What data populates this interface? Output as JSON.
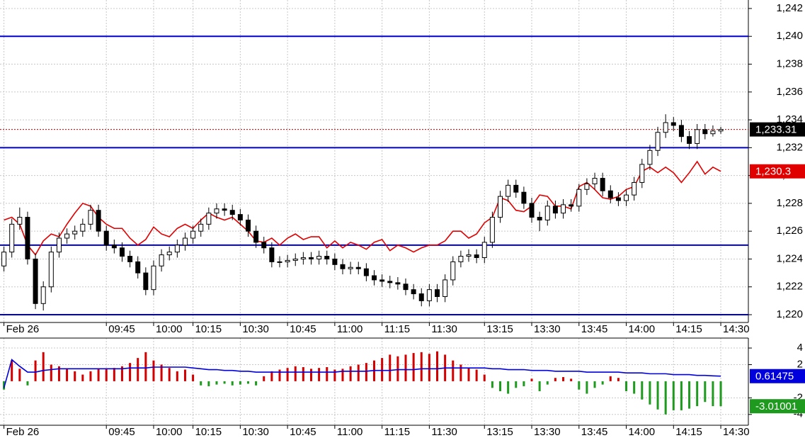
{
  "chart_data": [
    {
      "type": "candlestick",
      "xlim": [
        -0.5,
        94.5
      ],
      "xticks": [
        {
          "value": 0,
          "label": "Feb 26"
        },
        {
          "value": 13,
          "label": "09:45"
        },
        {
          "value": 19,
          "label": "10:00"
        },
        {
          "value": 24,
          "label": "10:15"
        },
        {
          "value": 30,
          "label": "10:30"
        },
        {
          "value": 36,
          "label": "10:45"
        },
        {
          "value": 42,
          "label": "11:00"
        },
        {
          "value": 48,
          "label": "11:15"
        },
        {
          "value": 54,
          "label": "11:30"
        },
        {
          "value": 61,
          "label": "13:15"
        },
        {
          "value": 67,
          "label": "13:30"
        },
        {
          "value": 73,
          "label": "13:45"
        },
        {
          "value": 79,
          "label": "14:00"
        },
        {
          "value": 85,
          "label": "14:15"
        },
        {
          "value": 91,
          "label": "14:30"
        }
      ],
      "ylim": [
        1219.44,
        1242.61
      ],
      "yticks": [
        {
          "value": 1220,
          "label": "1,220"
        },
        {
          "value": 1222,
          "label": "1,222"
        },
        {
          "value": 1224,
          "label": "1,224"
        },
        {
          "value": 1226,
          "label": "1,226"
        },
        {
          "value": 1228,
          "label": "1,228"
        },
        {
          "value": 1230,
          "label": "1,230"
        },
        {
          "value": 1232,
          "label": "1,232"
        },
        {
          "value": 1234,
          "label": "1,234"
        },
        {
          "value": 1236,
          "label": "1,236"
        },
        {
          "value": 1238,
          "label": "1,238"
        },
        {
          "value": 1240,
          "label": "1,240"
        },
        {
          "value": 1242,
          "label": "1,242"
        }
      ],
      "grid": true,
      "up_color": "#ffffff",
      "down_color": "#000000",
      "open": [
        1223.5,
        1224.5,
        1226.5,
        1227,
        1224,
        1220.8,
        1222,
        1224.5,
        1225.5,
        1225.8,
        1226,
        1226.5,
        1227.5,
        1226,
        1225,
        1224.8,
        1224.2,
        1223.8,
        1223,
        1221.8,
        1223.5,
        1224.3,
        1224.5,
        1225,
        1225.5,
        1226,
        1226.5,
        1227.3,
        1227.6,
        1227.5,
        1227.2,
        1226.8,
        1226,
        1225.2,
        1224.8,
        1223.8,
        1223.8,
        1223.9,
        1224,
        1224.1,
        1224,
        1224.2,
        1224,
        1223.6,
        1223.3,
        1223.4,
        1223.3,
        1222.8,
        1222.5,
        1222.4,
        1222.3,
        1222.2,
        1221.8,
        1221.5,
        1221,
        1221.8,
        1221.3,
        1222.5,
        1223.8,
        1224.2,
        1224.3,
        1224.1,
        1225.2,
        1227,
        1228.5,
        1229.3,
        1228.8,
        1228,
        1227,
        1226.8,
        1227.8,
        1227.3,
        1227.9,
        1227.8,
        1229,
        1229.4,
        1229.8,
        1228.9,
        1228.4,
        1228.2,
        1228.6,
        1229.5,
        1230.8,
        1231.8,
        1233.1,
        1233.8,
        1233.6,
        1232.8,
        1232.3,
        1233.3,
        1233,
        1233.2
      ],
      "high": [
        1224.9,
        1226.9,
        1227.7,
        1227.4,
        1224.4,
        1222.4,
        1224.9,
        1225.9,
        1226.2,
        1226.4,
        1226.9,
        1227.9,
        1227.9,
        1226.4,
        1225.4,
        1225.2,
        1224.6,
        1224.2,
        1223.4,
        1223.9,
        1224.7,
        1224.9,
        1225.4,
        1225.9,
        1226.4,
        1226.9,
        1227.7,
        1228,
        1228,
        1227.9,
        1227.6,
        1227.2,
        1226.4,
        1225.6,
        1225.2,
        1224.2,
        1224.3,
        1224.4,
        1224.5,
        1224.5,
        1224.6,
        1224.6,
        1224.4,
        1224,
        1223.8,
        1223.8,
        1223.7,
        1223.2,
        1222.9,
        1222.8,
        1222.7,
        1222.6,
        1222.2,
        1221.9,
        1222.2,
        1222.2,
        1222.9,
        1224.2,
        1224.6,
        1224.7,
        1224.7,
        1225.6,
        1227.4,
        1228.9,
        1229.7,
        1229.7,
        1229.2,
        1228.4,
        1227.4,
        1228.2,
        1228.2,
        1228.3,
        1228.3,
        1229.4,
        1229.8,
        1230.2,
        1230.2,
        1229.3,
        1228.8,
        1229,
        1229.9,
        1231.2,
        1232.2,
        1233.5,
        1234.4,
        1234.2,
        1234,
        1233.2,
        1233.7,
        1233.7,
        1233.6,
        1233.5
      ],
      "low": [
        1223.1,
        1224.1,
        1226.1,
        1223.6,
        1220.4,
        1220.3,
        1221.6,
        1224.1,
        1225.1,
        1225.4,
        1225.6,
        1226.1,
        1225.6,
        1224.6,
        1224.4,
        1223.8,
        1223.4,
        1222.6,
        1221.4,
        1221.4,
        1223.1,
        1223.9,
        1224.1,
        1224.6,
        1225.1,
        1225.6,
        1226.1,
        1226.9,
        1227.1,
        1226.8,
        1226.4,
        1225.6,
        1224.8,
        1224.4,
        1223.4,
        1223.4,
        1223.4,
        1223.5,
        1223.6,
        1223.6,
        1223.6,
        1223.6,
        1223.2,
        1222.9,
        1222.9,
        1222.9,
        1222.4,
        1222.1,
        1222,
        1221.9,
        1221.8,
        1221.4,
        1221.1,
        1220.6,
        1220.6,
        1220.9,
        1220.9,
        1222.1,
        1223.4,
        1223.8,
        1223.7,
        1223.7,
        1224.8,
        1226.6,
        1228.1,
        1228.4,
        1227.6,
        1226.6,
        1226,
        1226.4,
        1226.9,
        1226.9,
        1227.4,
        1227.4,
        1228.6,
        1229,
        1228.5,
        1228,
        1227.8,
        1227.8,
        1228.2,
        1229.1,
        1230.4,
        1231.4,
        1232.7,
        1233.2,
        1232.4,
        1231.9,
        1231.9,
        1232.6,
        1232.8,
        1233
      ],
      "close": [
        1224.5,
        1226.5,
        1227,
        1224,
        1220.8,
        1222,
        1224.5,
        1225.5,
        1225.8,
        1226,
        1226.5,
        1227.5,
        1226,
        1225,
        1224.8,
        1224.2,
        1223.8,
        1223,
        1221.8,
        1223.5,
        1224.3,
        1224.5,
        1225,
        1225.5,
        1226,
        1226.5,
        1227.3,
        1227.6,
        1227.5,
        1227.2,
        1226.8,
        1226,
        1225.2,
        1224.8,
        1223.8,
        1223.8,
        1223.9,
        1224,
        1224.1,
        1224,
        1224.2,
        1224,
        1223.6,
        1223.3,
        1223.4,
        1223.3,
        1222.8,
        1222.5,
        1222.4,
        1222.3,
        1222.2,
        1221.8,
        1221.5,
        1221,
        1221.8,
        1221.3,
        1222.5,
        1223.8,
        1224.2,
        1224.3,
        1224.1,
        1225.2,
        1227,
        1228.5,
        1229.3,
        1228.8,
        1228,
        1227,
        1226.8,
        1227.8,
        1227.3,
        1227.9,
        1227.8,
        1229,
        1229.4,
        1229.8,
        1228.9,
        1228.4,
        1228.2,
        1228.6,
        1229.5,
        1230.8,
        1231.8,
        1233.1,
        1233.8,
        1233.6,
        1232.8,
        1232.3,
        1233.3,
        1233,
        1233.2,
        1233.31
      ],
      "close_label": "1,233.31",
      "close_color": "#000000",
      "hlines": [
        1240,
        1232,
        1225,
        1220
      ],
      "hline_color": "#0000cc",
      "series": [
        {
          "color": "#e00000",
          "last_label": "1,230.3",
          "values": [
            1226.8,
            1227,
            1226.5,
            1225,
            1224.3,
            1225.3,
            1225.8,
            1225.6,
            1226.5,
            1227.3,
            1228,
            1227.8,
            1227,
            1226.5,
            1226.2,
            1226.2,
            1225.5,
            1225,
            1225.4,
            1226.3,
            1225.8,
            1225.6,
            1226.2,
            1226.5,
            1226.2,
            1226.8,
            1227.3,
            1227,
            1226.8,
            1227,
            1226.5,
            1226,
            1225.3,
            1225.2,
            1225.5,
            1225,
            1225.5,
            1225.8,
            1225.4,
            1225.6,
            1225.6,
            1224.8,
            1225.3,
            1224.8,
            1225.2,
            1225,
            1224.7,
            1225.2,
            1225.4,
            1224.6,
            1225,
            1224.8,
            1224.5,
            1224.8,
            1225,
            1225,
            1225.3,
            1226,
            1226,
            1225.5,
            1225.8,
            1226.6,
            1227,
            1228.4,
            1228.2,
            1227.5,
            1227.4,
            1227.8,
            1228.6,
            1228.5,
            1227.8,
            1227.8,
            1227.6,
            1229.2,
            1229.5,
            1229,
            1228.4,
            1228.3,
            1228.5,
            1229,
            1229.2,
            1230.3,
            1230.6,
            1230.2,
            1230.6,
            1230.2,
            1229.5,
            1230.2,
            1231,
            1230.1,
            1230.6,
            1230.3
          ]
        }
      ]
    },
    {
      "type": "histogram-line",
      "xlim": [
        -0.5,
        94.5
      ],
      "xticks": [
        {
          "value": 0,
          "label": "Feb 26"
        },
        {
          "value": 13,
          "label": "09:45"
        },
        {
          "value": 19,
          "label": "10:00"
        },
        {
          "value": 24,
          "label": "10:15"
        },
        {
          "value": 30,
          "label": "10:30"
        },
        {
          "value": 36,
          "label": "10:45"
        },
        {
          "value": 42,
          "label": "11:00"
        },
        {
          "value": 48,
          "label": "11:15"
        },
        {
          "value": 54,
          "label": "11:30"
        },
        {
          "value": 61,
          "label": "13:15"
        },
        {
          "value": 67,
          "label": "13:30"
        },
        {
          "value": 73,
          "label": "13:45"
        },
        {
          "value": 79,
          "label": "14:00"
        },
        {
          "value": 85,
          "label": "14:15"
        },
        {
          "value": 91,
          "label": "14:30"
        }
      ],
      "ylim": [
        -5.3,
        5.2
      ],
      "yticks": [
        4,
        2,
        -2,
        -4
      ],
      "grid": true,
      "series": [
        {
          "type": "bar",
          "color": "#d40000",
          "neg_color": "#1e9a1e",
          "values": [
            -1,
            2.5,
            1.5,
            -0.5,
            2.5,
            3.5,
            2,
            1.8,
            1.5,
            1.2,
            0.8,
            1.2,
            1.5,
            1.5,
            1.6,
            1.8,
            2.2,
            2.8,
            3.5,
            2.5,
            2,
            1.6,
            1.2,
            1.4,
            0.8,
            -0.5,
            -0.6,
            -0.4,
            -0.3,
            -0.5,
            -0.4,
            -0.3,
            -0.5,
            0.6,
            1.2,
            1.4,
            1.6,
            1.8,
            1.7,
            1.5,
            1.6,
            1.7,
            1.4,
            1.5,
            1.8,
            2,
            2.2,
            2.5,
            2.8,
            3.2,
            3,
            3.2,
            3.4,
            3.5,
            3.3,
            3.6,
            3.2,
            2.5,
            2,
            1.6,
            1.4,
            0.8,
            -0.8,
            -1.2,
            -1.5,
            -0.8,
            -0.6,
            0.3,
            -1.2,
            -0.4,
            0.4,
            0.5,
            0.3,
            -1,
            -1.5,
            -0.8,
            -0.4,
            0.6,
            0.4,
            -1.2,
            -1.5,
            -2.2,
            -2.8,
            -3.4,
            -4,
            -3.5,
            -3.5,
            -3.3,
            -3,
            -2.5,
            -3,
            -3.01001
          ]
        },
        {
          "type": "line",
          "color": "#0000dd",
          "values": [
            -0.8,
            2.6,
            1.8,
            1.1,
            1.1,
            1.3,
            1.4,
            1.5,
            1.5,
            1.5,
            1.5,
            1.5,
            1.5,
            1.5,
            1.5,
            1.5,
            1.6,
            1.6,
            1.6,
            1.7,
            1.7,
            1.7,
            1.7,
            1.7,
            1.6,
            1.5,
            1.4,
            1.4,
            1.3,
            1.3,
            1.2,
            1.2,
            1.1,
            1.1,
            1.1,
            1.1,
            1.1,
            1.1,
            1.1,
            1.1,
            1.1,
            1.1,
            1.1,
            1.2,
            1.2,
            1.2,
            1.2,
            1.3,
            1.3,
            1.3,
            1.4,
            1.4,
            1.4,
            1.5,
            1.5,
            1.5,
            1.6,
            1.6,
            1.6,
            1.6,
            1.6,
            1.6,
            1.5,
            1.5,
            1.4,
            1.4,
            1.4,
            1.3,
            1.3,
            1.3,
            1.2,
            1.2,
            1.2,
            1.2,
            1.1,
            1.1,
            1.1,
            1.1,
            1.1,
            1.0,
            1.0,
            1.0,
            0.9,
            0.9,
            0.9,
            0.8,
            0.8,
            0.8,
            0.7,
            0.7,
            0.65,
            0.61475
          ]
        }
      ]
    }
  ]
}
